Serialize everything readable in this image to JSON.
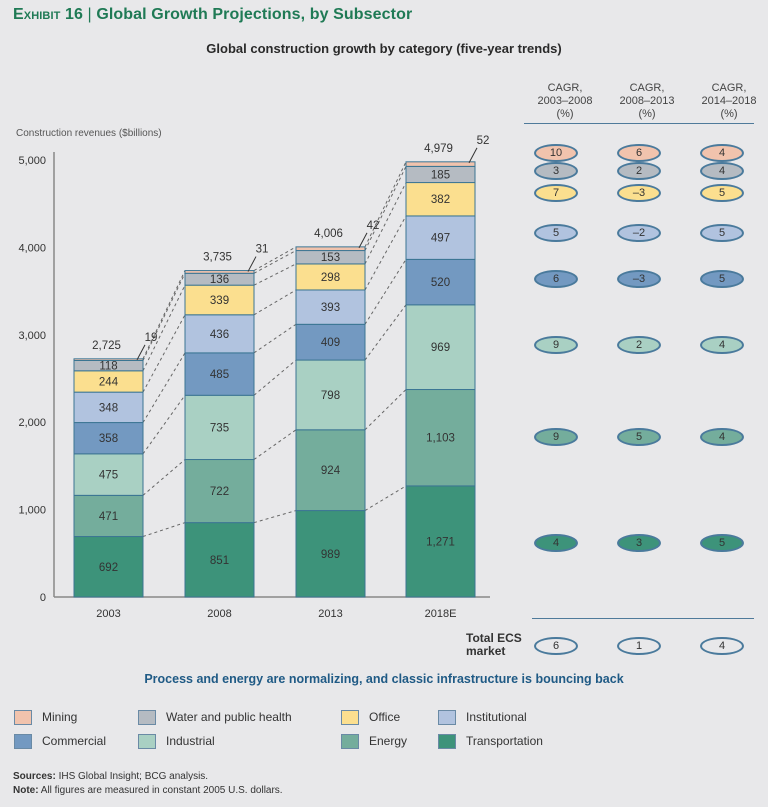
{
  "header": {
    "exhibit_label": "Exhibit 16",
    "separator": "|",
    "title": "Global Growth Projections, by Subsector",
    "subtitle": "Global construction growth by category (five-year trends)"
  },
  "chart_data": {
    "type": "bar",
    "stacked": true,
    "title": "Global construction growth by category (five-year trends)",
    "ylabel": "Construction revenues ($billions)",
    "xlabel": "",
    "ylim": [
      0,
      5000
    ],
    "yticks": [
      0,
      1000,
      2000,
      3000,
      4000,
      5000
    ],
    "ytick_labels": [
      "0",
      "1,000",
      "2,000",
      "3,000",
      "4,000",
      "5,000"
    ],
    "categories": [
      "2003",
      "2008",
      "2013",
      "2018E"
    ],
    "totals": [
      2725,
      3735,
      4006,
      4979
    ],
    "total_labels": [
      "2,725",
      "3,735",
      "4,006",
      "4,979"
    ],
    "series": [
      {
        "name": "Transportation",
        "color": "#3d937a",
        "values": [
          692,
          851,
          989,
          1271
        ],
        "labels": [
          "692",
          "851",
          "989",
          "1,271"
        ]
      },
      {
        "name": "Energy",
        "color": "#74ad9c",
        "values": [
          471,
          722,
          924,
          1103
        ],
        "labels": [
          "471",
          "722",
          "924",
          "1,103"
        ]
      },
      {
        "name": "Industrial",
        "color": "#a9d0c3",
        "values": [
          475,
          735,
          798,
          969
        ],
        "labels": [
          "475",
          "735",
          "798",
          "969"
        ]
      },
      {
        "name": "Commercial",
        "color": "#7399c1",
        "values": [
          358,
          485,
          409,
          520
        ],
        "labels": [
          "358",
          "485",
          "409",
          "520"
        ]
      },
      {
        "name": "Institutional",
        "color": "#b1c3df",
        "values": [
          348,
          436,
          393,
          497
        ],
        "labels": [
          "348",
          "436",
          "393",
          "497"
        ]
      },
      {
        "name": "Office",
        "color": "#fbdf8f",
        "values": [
          244,
          339,
          298,
          382
        ],
        "labels": [
          "244",
          "339",
          "298",
          "382"
        ]
      },
      {
        "name": "Water and public health",
        "color": "#b5bbc2",
        "values": [
          118,
          136,
          153,
          185
        ],
        "labels": [
          "118",
          "136",
          "153",
          "185"
        ]
      },
      {
        "name": "Mining",
        "color": "#f1c3ad",
        "values": [
          19,
          31,
          42,
          52
        ],
        "labels": [
          "19",
          "31",
          "42",
          "52"
        ]
      }
    ],
    "legend_position": "bottom",
    "grid": false
  },
  "cagr": {
    "headers": [
      {
        "line1": "CAGR,",
        "line2": "2003–2008",
        "line3": "(%)"
      },
      {
        "line1": "CAGR,",
        "line2": "2008–2013",
        "line3": "(%)"
      },
      {
        "line1": "CAGR,",
        "line2": "2014–2018",
        "line3": "(%)"
      }
    ],
    "rows": [
      {
        "name": "Mining",
        "color": "#f1c3ad",
        "values": [
          "10",
          "6",
          "4"
        ]
      },
      {
        "name": "Water and public health",
        "color": "#b5bbc2",
        "values": [
          "3",
          "2",
          "4"
        ]
      },
      {
        "name": "Office",
        "color": "#fbdf8f",
        "values": [
          "7",
          "–3",
          "5"
        ]
      },
      {
        "name": "Institutional",
        "color": "#b1c3df",
        "values": [
          "5",
          "–2",
          "5"
        ]
      },
      {
        "name": "Commercial",
        "color": "#7399c1",
        "values": [
          "6",
          "–3",
          "5"
        ]
      },
      {
        "name": "Industrial",
        "color": "#a9d0c3",
        "values": [
          "9",
          "2",
          "4"
        ]
      },
      {
        "name": "Energy",
        "color": "#74ad9c",
        "values": [
          "9",
          "5",
          "4"
        ]
      },
      {
        "name": "Transportation",
        "color": "#3d937a",
        "values": [
          "4",
          "3",
          "5"
        ]
      }
    ],
    "total": {
      "label_line1": "Total ECS",
      "label_line2": "market",
      "values": [
        "6",
        "1",
        "4"
      ]
    }
  },
  "takeaway": "Process and energy are normalizing, and classic infrastructure is bouncing back",
  "legend": [
    {
      "name": "Mining",
      "color": "#f1c3ad"
    },
    {
      "name": "Water and public health",
      "color": "#b5bbc2"
    },
    {
      "name": "Office",
      "color": "#fbdf8f"
    },
    {
      "name": "Institutional",
      "color": "#b1c3df"
    },
    {
      "name": "Commercial",
      "color": "#7399c1"
    },
    {
      "name": "Industrial",
      "color": "#a9d0c3"
    },
    {
      "name": "Energy",
      "color": "#74ad9c"
    },
    {
      "name": "Transportation",
      "color": "#3d937a"
    }
  ],
  "footer": {
    "sources_label": "Sources:",
    "sources_text": " IHS Global Insight; BCG analysis.",
    "note_label": "Note:",
    "note_text": " All figures are measured in constant 2005 U.S. dollars."
  }
}
